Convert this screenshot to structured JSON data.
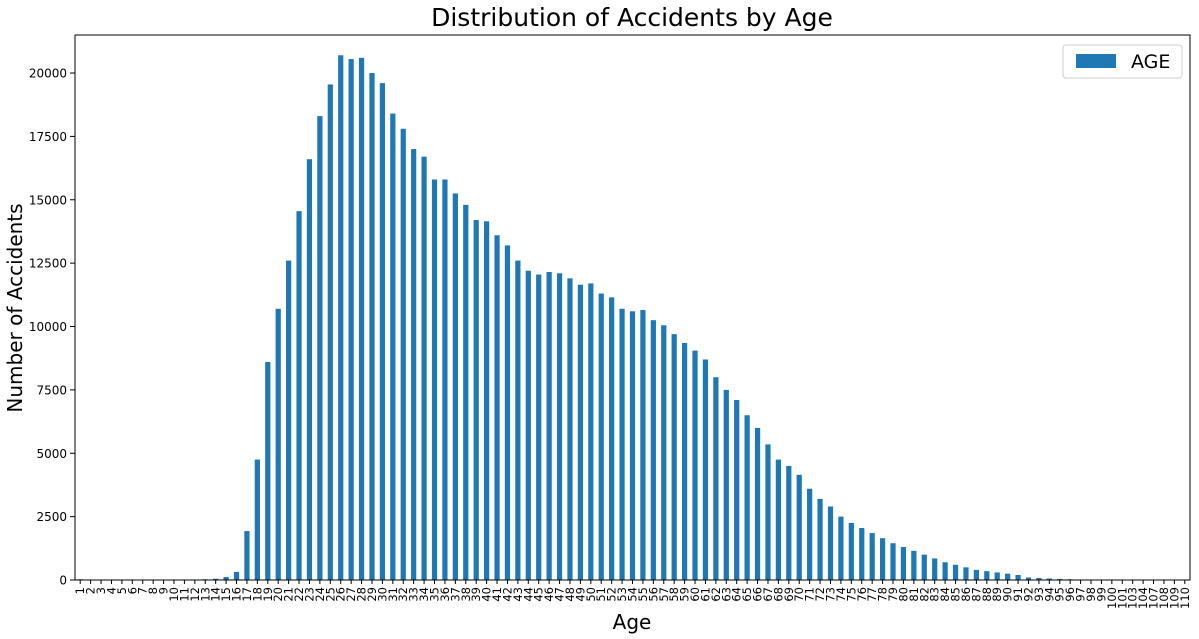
{
  "chart_data": {
    "type": "bar",
    "title": "Distribution of Accidents by Age",
    "xlabel": "Age",
    "ylabel": "Number of Accidents",
    "ylim": [
      0,
      21500
    ],
    "yticks": [
      0,
      2500,
      5000,
      7500,
      10000,
      12500,
      15000,
      17500,
      20000
    ],
    "grid": false,
    "legend_position": "top-right",
    "series": [
      {
        "name": "AGE",
        "color": "#1f77b4",
        "values": [
          30,
          20,
          20,
          20,
          10,
          10,
          10,
          20,
          10,
          10,
          20,
          20,
          30,
          50,
          120,
          320,
          1930,
          4750,
          8600,
          10700,
          12600,
          14550,
          16600,
          18300,
          19550,
          20700,
          20550,
          20600,
          20000,
          19600,
          18400,
          17800,
          17000,
          16700,
          15800,
          15800,
          15250,
          14800,
          14200,
          14150,
          13600,
          13200,
          12600,
          12200,
          12050,
          12150,
          12100,
          11900,
          11650,
          11700,
          11300,
          11150,
          10700,
          10600,
          10650,
          10250,
          10050,
          9700,
          9350,
          9050,
          8700,
          8000,
          7500,
          7100,
          6500,
          6000,
          5350,
          4750,
          4500,
          4150,
          3600,
          3200,
          2900,
          2500,
          2250,
          2050,
          1850,
          1650,
          1450,
          1300,
          1150,
          1000,
          850,
          700,
          600,
          500,
          400,
          350,
          300,
          250,
          200,
          100,
          80,
          60,
          40,
          30,
          20,
          15,
          10,
          5,
          5,
          3,
          3,
          2,
          2,
          2,
          2
        ]
      }
    ],
    "categories": [
      "1",
      "2",
      "3",
      "4",
      "5",
      "6",
      "7",
      "8",
      "9",
      "10",
      "11",
      "12",
      "13",
      "14",
      "15",
      "16",
      "17",
      "18",
      "19",
      "20",
      "21",
      "22",
      "23",
      "24",
      "25",
      "26",
      "27",
      "28",
      "29",
      "30",
      "31",
      "32",
      "33",
      "34",
      "35",
      "36",
      "37",
      "38",
      "39",
      "40",
      "41",
      "42",
      "43",
      "44",
      "45",
      "46",
      "47",
      "48",
      "49",
      "50",
      "51",
      "52",
      "53",
      "54",
      "55",
      "56",
      "57",
      "58",
      "59",
      "60",
      "61",
      "62",
      "63",
      "64",
      "65",
      "66",
      "67",
      "68",
      "69",
      "70",
      "71",
      "72",
      "73",
      "74",
      "75",
      "76",
      "77",
      "78",
      "79",
      "80",
      "81",
      "82",
      "83",
      "84",
      "85",
      "86",
      "87",
      "88",
      "89",
      "90",
      "91",
      "92",
      "93",
      "94",
      "95",
      "96",
      "97",
      "98",
      "99",
      "100",
      "101",
      "103",
      "104",
      "107",
      "108",
      "109",
      "110"
    ]
  }
}
